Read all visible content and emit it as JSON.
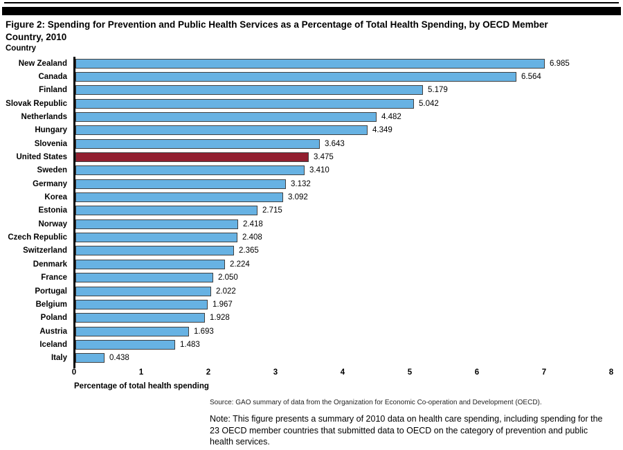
{
  "page": {
    "title_line1": "Figure 2: Spending for Prevention and Public Health Services as a Percentage of Total Health Spending, by OECD Member",
    "title_line2": "Country, 2010",
    "country_header": "Country",
    "source": "Source: GAO summary of data from the Organization for Economic Co-operation and Development (OECD).",
    "note": "Note: This figure presents a summary of 2010 data on health care spending, including spending for the 23 OECD member countries that submitted data to OECD on the category of prevention and public health services."
  },
  "chart_data": {
    "type": "bar",
    "orientation": "horizontal",
    "title": "Spending for Prevention and Public Health Services as a Percentage of Total Health Spending, by OECD Member Country, 2010",
    "ylabel": "Country",
    "xlabel": "Percentage of total health spending",
    "xlim": [
      0,
      8
    ],
    "x_ticks": [
      "0",
      "1",
      "2",
      "3",
      "4",
      "5",
      "6",
      "7",
      "8"
    ],
    "grid": false,
    "legend": false,
    "categories": [
      "New Zealand",
      "Canada",
      "Finland",
      "Slovak Republic",
      "Netherlands",
      "Hungary",
      "Slovenia",
      "United States",
      "Sweden",
      "Germany",
      "Korea",
      "Estonia",
      "Norway",
      "Czech Republic",
      "Switzerland",
      "Denmark",
      "France",
      "Portugal",
      "Belgium",
      "Poland",
      "Austria",
      "Iceland",
      "Italy"
    ],
    "values": [
      6.985,
      6.564,
      5.179,
      5.042,
      4.482,
      4.349,
      3.643,
      3.475,
      3.41,
      3.132,
      3.092,
      2.715,
      2.418,
      2.408,
      2.365,
      2.224,
      2.05,
      2.022,
      1.967,
      1.928,
      1.693,
      1.483,
      0.438
    ],
    "value_labels": [
      "6.985",
      "6.564",
      "5.179",
      "5.042",
      "4.482",
      "4.349",
      "3.643",
      "3.475",
      "3.410",
      "3.132",
      "3.092",
      "2.715",
      "2.418",
      "2.408",
      "2.365",
      "2.224",
      "2.050",
      "2.022",
      "1.967",
      "1.928",
      "1.693",
      "1.483",
      "0.438"
    ],
    "highlight_category": "United States",
    "colors": {
      "bar": "#67B2E3",
      "highlight": "#921F30",
      "bar_border": "#404040",
      "axis": "#000000"
    }
  }
}
